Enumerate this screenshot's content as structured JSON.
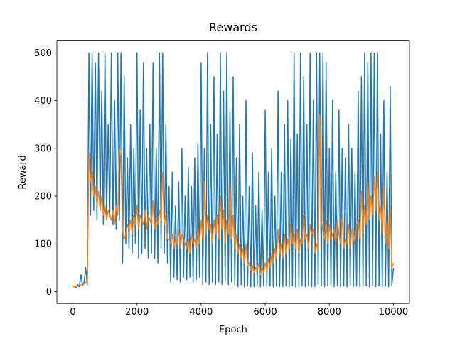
{
  "chart_data": {
    "type": "line",
    "title": "Rewards",
    "x_label": "Epoch",
    "y_label": "Reward",
    "x": [
      0,
      50,
      100,
      150,
      200,
      250,
      300,
      350,
      400,
      450,
      500,
      550,
      600,
      650,
      700,
      750,
      800,
      850,
      900,
      950,
      1000,
      1050,
      1100,
      1150,
      1200,
      1250,
      1300,
      1350,
      1400,
      1450,
      1500,
      1550,
      1600,
      1650,
      1700,
      1750,
      1800,
      1850,
      1900,
      1950,
      2000,
      2050,
      2100,
      2150,
      2200,
      2250,
      2300,
      2350,
      2400,
      2450,
      2500,
      2550,
      2600,
      2650,
      2700,
      2750,
      2800,
      2850,
      2900,
      2950,
      3000,
      3050,
      3100,
      3150,
      3200,
      3250,
      3300,
      3350,
      3400,
      3450,
      3500,
      3550,
      3600,
      3650,
      3700,
      3750,
      3800,
      3850,
      3900,
      3950,
      4000,
      4050,
      4100,
      4150,
      4200,
      4250,
      4300,
      4350,
      4400,
      4450,
      4500,
      4550,
      4600,
      4650,
      4700,
      4750,
      4800,
      4850,
      4900,
      4950,
      5000,
      5050,
      5100,
      5150,
      5200,
      5250,
      5300,
      5350,
      5400,
      5450,
      5500,
      5550,
      5600,
      5650,
      5700,
      5750,
      5800,
      5850,
      5900,
      5950,
      6000,
      6050,
      6100,
      6150,
      6200,
      6250,
      6300,
      6350,
      6400,
      6450,
      6500,
      6550,
      6600,
      6650,
      6700,
      6750,
      6800,
      6850,
      6900,
      6950,
      7000,
      7050,
      7100,
      7150,
      7200,
      7250,
      7300,
      7350,
      7400,
      7450,
      7500,
      7550,
      7600,
      7650,
      7700,
      7750,
      7800,
      7850,
      7900,
      7950,
      8000,
      8050,
      8100,
      8150,
      8200,
      8250,
      8300,
      8350,
      8400,
      8450,
      8500,
      8550,
      8600,
      8650,
      8700,
      8750,
      8800,
      8850,
      8900,
      8950,
      9000,
      9050,
      9100,
      9150,
      9200,
      9250,
      9300,
      9350,
      9400,
      9450,
      9500,
      9550,
      9600,
      9650,
      9700,
      9750,
      9800,
      9850,
      9900,
      9950,
      10000
    ],
    "series": [
      {
        "color": "#1f77b4",
        "values": [
          10,
          12,
          8,
          15,
          10,
          35,
          12,
          20,
          50,
          15,
          500,
          160,
          500,
          170,
          480,
          150,
          500,
          180,
          420,
          140,
          500,
          150,
          350,
          160,
          500,
          140,
          400,
          130,
          500,
          150,
          500,
          60,
          450,
          100,
          280,
          90,
          350,
          80,
          300,
          100,
          500,
          70,
          380,
          80,
          480,
          90,
          300,
          70,
          350,
          80,
          480,
          70,
          300,
          60,
          500,
          90,
          500,
          80,
          350,
          60,
          220,
          20,
          250,
          30,
          180,
          25,
          230,
          20,
          300,
          30,
          200,
          25,
          260,
          30,
          220,
          20,
          280,
          25,
          310,
          30,
          480,
          15,
          300,
          20,
          500,
          15,
          350,
          20,
          450,
          15,
          330,
          20,
          500,
          15,
          420,
          20,
          500,
          15,
          380,
          20,
          450,
          15,
          280,
          10,
          350,
          15,
          200,
          10,
          400,
          12,
          220,
          10,
          290,
          10,
          180,
          12,
          250,
          10,
          170,
          12,
          380,
          10,
          250,
          12,
          300,
          10,
          200,
          12,
          420,
          10,
          250,
          10,
          350,
          12,
          400,
          10,
          320,
          12,
          500,
          10,
          330,
          10,
          500,
          12,
          450,
          10,
          350,
          12,
          500,
          10,
          400,
          10,
          500,
          15,
          500,
          12,
          500,
          10,
          480,
          12,
          300,
          12,
          400,
          10,
          250,
          12,
          380,
          10,
          300,
          12,
          280,
          10,
          350,
          12,
          300,
          10,
          250,
          12,
          420,
          10,
          450,
          10,
          500,
          12,
          480,
          10,
          500,
          12,
          500,
          10,
          500,
          12,
          330,
          10,
          400,
          12,
          250,
          10,
          430,
          12,
          50
        ]
      },
      {
        "color": "#ff7f0e",
        "values": [
          10,
          10,
          10,
          12,
          12,
          14,
          14,
          16,
          18,
          25,
          290,
          230,
          250,
          200,
          220,
          180,
          210,
          170,
          200,
          160,
          180,
          150,
          170,
          160,
          150,
          170,
          140,
          180,
          160,
          300,
          280,
          130,
          110,
          120,
          140,
          130,
          150,
          120,
          160,
          140,
          180,
          130,
          160,
          150,
          140,
          170,
          130,
          160,
          150,
          140,
          190,
          130,
          150,
          140,
          170,
          150,
          250,
          140,
          160,
          110,
          110,
          100,
          120,
          90,
          110,
          100,
          130,
          90,
          120,
          110,
          100,
          90,
          110,
          80,
          120,
          100,
          110,
          90,
          130,
          100,
          150,
          110,
          230,
          120,
          160,
          130,
          140,
          100,
          150,
          120,
          160,
          110,
          200,
          130,
          170,
          100,
          150,
          120,
          230,
          110,
          160,
          90,
          120,
          80,
          100,
          70,
          90,
          60,
          100,
          55,
          60,
          45,
          55,
          40,
          50,
          45,
          60,
          35,
          50,
          40,
          60,
          45,
          70,
          50,
          80,
          60,
          90,
          70,
          130,
          80,
          100,
          70,
          120,
          80,
          110,
          90,
          140,
          100,
          120,
          90,
          130,
          80,
          110,
          100,
          160,
          110,
          120,
          90,
          140,
          120,
          130,
          80,
          100,
          90,
          370,
          150,
          130,
          110,
          150,
          100,
          140,
          110,
          120,
          130,
          100,
          150,
          120,
          100,
          160,
          90,
          110,
          100,
          140,
          90,
          130,
          120,
          100,
          140,
          150,
          110,
          210,
          120,
          180,
          140,
          230,
          150,
          200,
          160,
          240,
          170,
          250,
          150,
          180,
          120,
          220,
          100,
          150,
          90,
          180,
          50,
          60
        ]
      }
    ],
    "xlim": [
      -500,
      10500
    ],
    "ylim": [
      -25,
      525
    ],
    "xticks": [
      0,
      2000,
      4000,
      6000,
      8000,
      10000
    ],
    "yticks": [
      0,
      100,
      200,
      300,
      400,
      500
    ]
  }
}
